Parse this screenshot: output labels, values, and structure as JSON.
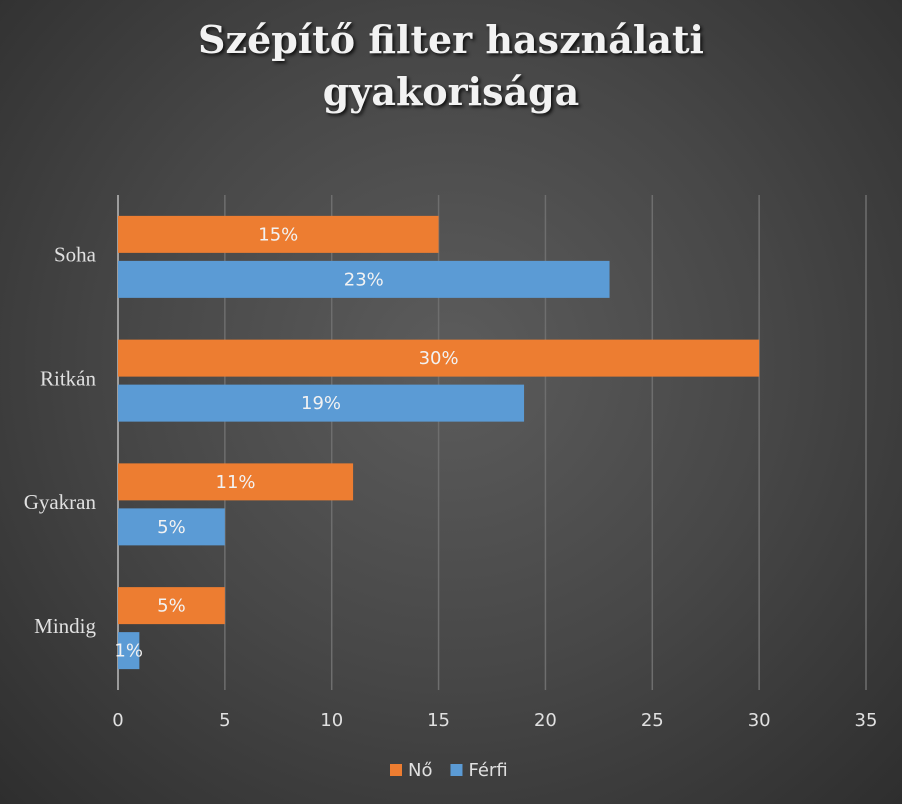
{
  "chart_data": {
    "type": "bar",
    "orientation": "horizontal",
    "title": "Szépítő filter használati gyakorisága",
    "categories": [
      "Soha",
      "Ritkán",
      "Gyakran",
      "Mindig"
    ],
    "series": [
      {
        "name": "Nő",
        "color": "#ed7d31",
        "values": [
          15,
          30,
          11,
          5
        ],
        "value_labels": [
          "15%",
          "30%",
          "11%",
          "5%"
        ]
      },
      {
        "name": "Férfi",
        "color": "#5b9bd5",
        "values": [
          23,
          19,
          5,
          1
        ],
        "value_labels": [
          "23%",
          "19%",
          "5%",
          "1%"
        ]
      }
    ],
    "xlim": [
      0,
      35
    ],
    "xticks": [
      0,
      5,
      10,
      15,
      20,
      25,
      30,
      35
    ],
    "grid": true,
    "legend": "bottom"
  }
}
